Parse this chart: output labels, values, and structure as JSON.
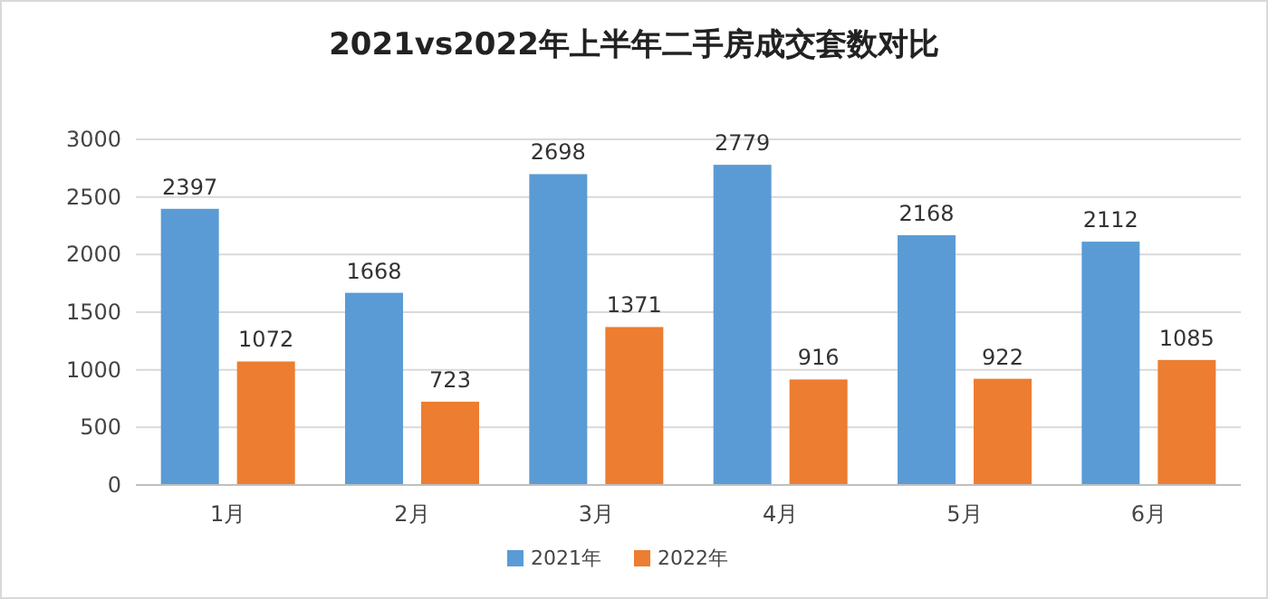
{
  "chart_data": {
    "type": "bar",
    "title": "2021vs2022年上半年二手房成交套数对比",
    "categories": [
      "1月",
      "2月",
      "3月",
      "4月",
      "5月",
      "6月"
    ],
    "series": [
      {
        "name": "2021年",
        "color": "#5b9bd5",
        "values": [
          2397,
          1668,
          2698,
          2779,
          2168,
          2112
        ]
      },
      {
        "name": "2022年",
        "color": "#ed7d31",
        "values": [
          1072,
          723,
          1371,
          916,
          922,
          1085
        ]
      }
    ],
    "ylim": [
      0,
      3000
    ],
    "yticks": [
      0,
      500,
      1000,
      1500,
      2000,
      2500,
      3000
    ],
    "grid": "y",
    "legend": "bottom",
    "data_labels": true
  }
}
